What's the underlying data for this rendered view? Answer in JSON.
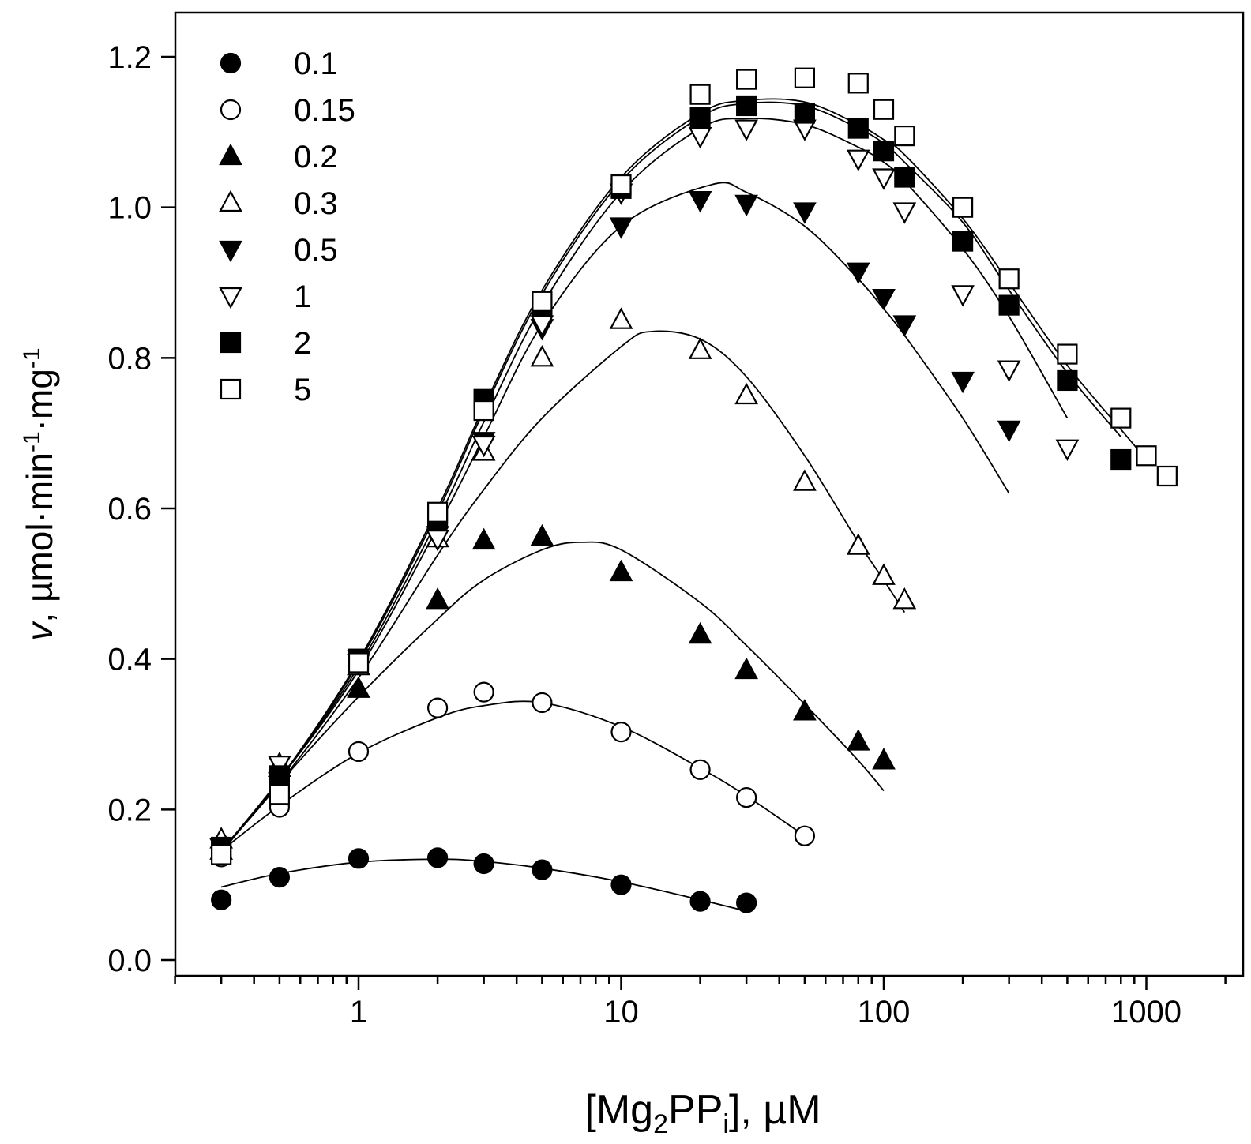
{
  "chart_data": {
    "type": "scatter",
    "title": "",
    "xlabel": {
      "pre": "[Mg",
      "sub1": "2",
      "mid": "PP",
      "sub2": "i",
      "post": "], µM"
    },
    "ylabel": {
      "pre": "v",
      "mid": ", µmol·min",
      "sup1": "-1",
      "mid2": "·mg",
      "sup2": "-1"
    },
    "xscale": "log",
    "xlim": [
      0.2,
      2000
    ],
    "ylim": [
      0.0,
      1.25
    ],
    "x_ticks": [
      1,
      10,
      100,
      1000
    ],
    "x_tick_labels": [
      "1",
      "10",
      "100",
      "1000"
    ],
    "y_ticks": [
      0.0,
      0.2,
      0.4,
      0.6,
      0.8,
      1.0,
      1.2
    ],
    "y_tick_labels": [
      "0.0",
      "0.2",
      "0.4",
      "0.6",
      "0.8",
      "1.0",
      "1.2"
    ],
    "legend_position": "top-left",
    "series": [
      {
        "name": "0.1",
        "marker": "circle",
        "filled": true,
        "x": [
          0.3,
          0.5,
          1,
          2,
          3,
          5,
          10,
          20,
          30
        ],
        "y": [
          0.08,
          0.11,
          0.135,
          0.136,
          0.128,
          0.12,
          0.1,
          0.078,
          0.076
        ],
        "fit_x": [
          0.3,
          0.5,
          1,
          2,
          3,
          5,
          10,
          20,
          30
        ],
        "fit_y": [
          0.097,
          0.115,
          0.13,
          0.134,
          0.131,
          0.122,
          0.104,
          0.08,
          0.065
        ]
      },
      {
        "name": "0.15",
        "marker": "circle",
        "filled": false,
        "x": [
          0.3,
          0.5,
          1,
          2,
          3,
          5,
          10,
          20,
          30,
          50
        ],
        "y": [
          0.137,
          0.203,
          0.277,
          0.335,
          0.356,
          0.342,
          0.303,
          0.253,
          0.216,
          0.165
        ],
        "fit_x": [
          0.3,
          0.5,
          1,
          2,
          3,
          5,
          10,
          20,
          30,
          50
        ],
        "fit_y": [
          0.145,
          0.205,
          0.275,
          0.322,
          0.338,
          0.342,
          0.31,
          0.255,
          0.218,
          0.165
        ]
      },
      {
        "name": "0.2",
        "marker": "triangle-up",
        "filled": true,
        "x": [
          0.3,
          0.5,
          1,
          2,
          3,
          5,
          10,
          20,
          30,
          50,
          80,
          100
        ],
        "y": [
          0.145,
          0.255,
          0.36,
          0.478,
          0.557,
          0.562,
          0.515,
          0.432,
          0.385,
          0.33,
          0.29,
          0.265
        ],
        "fit_x": [
          0.3,
          0.5,
          1,
          2,
          3,
          5,
          7,
          10,
          20,
          30,
          50,
          80,
          100
        ],
        "fit_y": [
          0.143,
          0.235,
          0.35,
          0.453,
          0.505,
          0.545,
          0.555,
          0.545,
          0.475,
          0.418,
          0.34,
          0.265,
          0.225
        ]
      },
      {
        "name": "0.3",
        "marker": "triangle-up",
        "filled": false,
        "x": [
          0.3,
          0.5,
          1,
          2,
          3,
          5,
          10,
          20,
          30,
          50,
          80,
          100,
          120
        ],
        "y": [
          0.16,
          0.26,
          0.39,
          0.56,
          0.675,
          0.8,
          0.85,
          0.81,
          0.75,
          0.635,
          0.55,
          0.51,
          0.478
        ],
        "fit_x": [
          0.3,
          0.5,
          1,
          2,
          3,
          5,
          10,
          13,
          20,
          30,
          50,
          80,
          100,
          120
        ],
        "fit_y": [
          0.145,
          0.235,
          0.375,
          0.538,
          0.625,
          0.72,
          0.815,
          0.835,
          0.825,
          0.775,
          0.67,
          0.555,
          0.505,
          0.462
        ]
      },
      {
        "name": "0.5",
        "marker": "triangle-down",
        "filled": true,
        "x": [
          0.3,
          0.5,
          1,
          2,
          3,
          5,
          10,
          20,
          30,
          50,
          80,
          100,
          120,
          200,
          300
        ],
        "y": [
          0.15,
          0.26,
          0.395,
          0.565,
          0.69,
          0.84,
          0.975,
          1.01,
          1.005,
          0.995,
          0.915,
          0.88,
          0.845,
          0.77,
          0.705
        ],
        "fit_x": [
          0.3,
          0.5,
          1,
          2,
          3,
          5,
          10,
          22,
          30,
          50,
          80,
          100,
          120,
          200,
          300
        ],
        "fit_y": [
          0.145,
          0.24,
          0.385,
          0.575,
          0.695,
          0.845,
          0.975,
          1.03,
          1.02,
          0.975,
          0.905,
          0.865,
          0.83,
          0.72,
          0.62
        ]
      },
      {
        "name": "1",
        "marker": "triangle-down",
        "filled": false,
        "x": [
          0.3,
          0.5,
          1,
          2,
          3,
          5,
          10,
          20,
          30,
          50,
          80,
          100,
          120,
          200,
          300,
          500
        ],
        "y": [
          0.15,
          0.26,
          0.4,
          0.56,
          0.685,
          0.845,
          1.02,
          1.095,
          1.105,
          1.105,
          1.065,
          1.04,
          0.995,
          0.885,
          0.785,
          0.68
        ],
        "fit_x": [
          0.3,
          0.5,
          1,
          2,
          3,
          5,
          10,
          20,
          30,
          50,
          80,
          100,
          120,
          200,
          300,
          500
        ],
        "fit_y": [
          0.145,
          0.24,
          0.39,
          0.585,
          0.715,
          0.87,
          1.02,
          1.105,
          1.118,
          1.11,
          1.08,
          1.06,
          1.035,
          0.945,
          0.855,
          0.72
        ]
      },
      {
        "name": "2",
        "marker": "square",
        "filled": true,
        "x": [
          0.3,
          0.5,
          1,
          2,
          3,
          5,
          10,
          20,
          30,
          50,
          80,
          100,
          120,
          200,
          300,
          500,
          800
        ],
        "y": [
          0.15,
          0.245,
          0.4,
          0.59,
          0.745,
          0.87,
          1.025,
          1.12,
          1.135,
          1.125,
          1.105,
          1.075,
          1.04,
          0.955,
          0.87,
          0.77,
          0.665
        ],
        "fit_x": [
          0.3,
          0.5,
          1,
          2,
          3,
          5,
          10,
          20,
          30,
          50,
          80,
          100,
          120,
          200,
          300,
          500,
          800
        ],
        "fit_y": [
          0.145,
          0.24,
          0.395,
          0.595,
          0.73,
          0.885,
          1.035,
          1.12,
          1.138,
          1.135,
          1.105,
          1.085,
          1.06,
          0.98,
          0.89,
          0.78,
          0.695
        ]
      },
      {
        "name": "5",
        "marker": "square",
        "filled": false,
        "x": [
          0.3,
          0.5,
          1,
          2,
          3,
          5,
          10,
          20,
          30,
          50,
          80,
          100,
          120,
          200,
          300,
          500,
          800,
          1000,
          1200
        ],
        "y": [
          0.14,
          0.22,
          0.395,
          0.595,
          0.73,
          0.875,
          1.03,
          1.15,
          1.17,
          1.172,
          1.165,
          1.13,
          1.095,
          1.0,
          0.905,
          0.805,
          0.72,
          0.67,
          0.643
        ],
        "fit_x": [
          0.3,
          0.5,
          1,
          2,
          3,
          5,
          10,
          20,
          30,
          50,
          80,
          100,
          120,
          200,
          300,
          500,
          800,
          1000
        ],
        "fit_y": [
          0.145,
          0.24,
          0.398,
          0.6,
          0.735,
          0.89,
          1.04,
          1.125,
          1.142,
          1.14,
          1.11,
          1.09,
          1.07,
          0.985,
          0.9,
          0.79,
          0.705,
          0.665
        ]
      }
    ]
  }
}
